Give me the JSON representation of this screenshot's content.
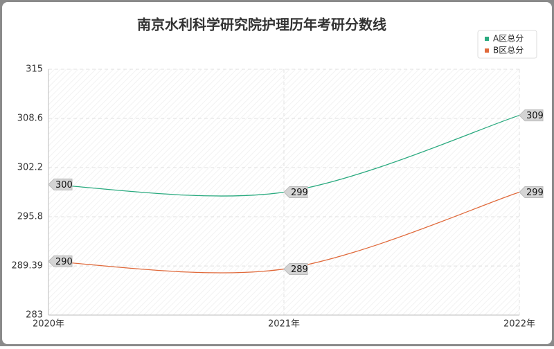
{
  "chart_data": {
    "type": "line",
    "title": "南京水利科学研究院护理历年考研分数线",
    "categories": [
      "2020年",
      "2021年",
      "2022年"
    ],
    "series": [
      {
        "name": "A区总分",
        "color": "#2aaa7f",
        "values": [
          300,
          299,
          309
        ]
      },
      {
        "name": "B区总分",
        "color": "#e0693a",
        "values": [
          290,
          289,
          299
        ]
      }
    ],
    "ylim": [
      283,
      315
    ],
    "yticks": [
      283,
      289.39,
      295.8,
      302.2,
      308.6,
      315
    ],
    "grid": true,
    "legend": "top-right",
    "smooth": true
  }
}
